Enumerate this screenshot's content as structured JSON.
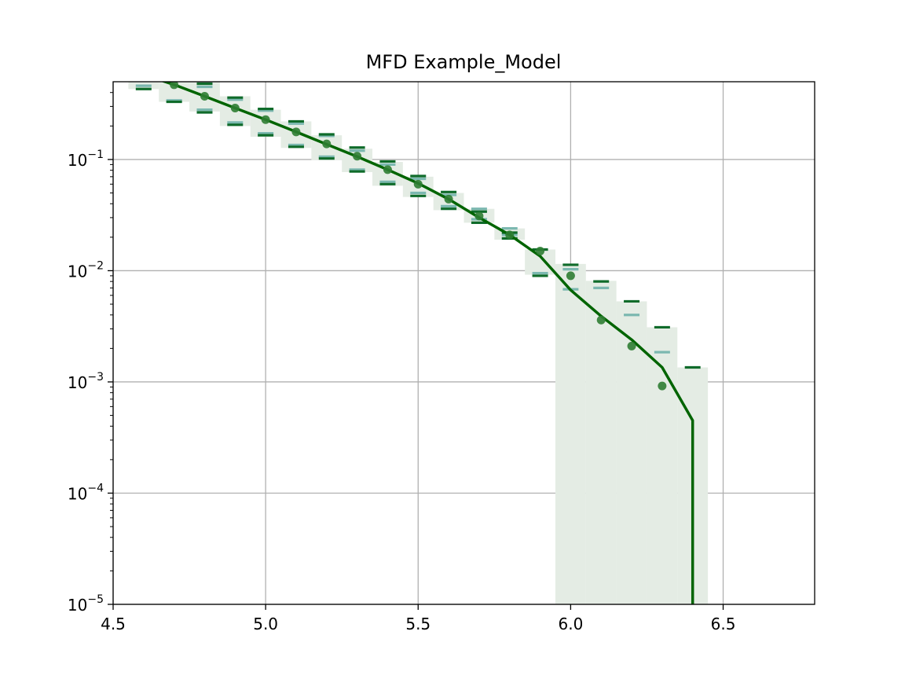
{
  "chart_data": {
    "type": "line",
    "title": "MFD Example_Model",
    "xlabel": "",
    "ylabel": "",
    "xlim": [
      4.5,
      6.8
    ],
    "ylim": [
      1e-05,
      0.5
    ],
    "yscale": "log",
    "grid": true,
    "x_ticks": [
      {
        "value": 4.5,
        "label": "4.5"
      },
      {
        "value": 5.0,
        "label": "5.0"
      },
      {
        "value": 5.5,
        "label": "5.5"
      },
      {
        "value": 6.0,
        "label": "6.0"
      },
      {
        "value": 6.5,
        "label": "6.5"
      }
    ],
    "y_ticks": [
      {
        "value": 0.1,
        "base": "10",
        "exp": "−1"
      },
      {
        "value": 0.01,
        "base": "10",
        "exp": "−2"
      },
      {
        "value": 0.001,
        "base": "10",
        "exp": "−3"
      },
      {
        "value": 0.0001,
        "base": "10",
        "exp": "−4"
      },
      {
        "value": 1e-05,
        "base": "10",
        "exp": "−5"
      }
    ],
    "colors": {
      "model_line": "#006400",
      "observed_points": "#2e7d32",
      "band_fill": "#e4ece4",
      "bound_dark": "#0f6b2a",
      "bound_light": "#7cb8b0",
      "grid": "#b0b0b0"
    },
    "model_line": {
      "x": [
        4.6,
        4.7,
        4.8,
        4.9,
        5.0,
        5.1,
        5.2,
        5.3,
        5.4,
        5.5,
        5.6,
        5.7,
        5.8,
        5.9,
        6.0,
        6.1,
        6.2,
        6.3,
        6.4,
        6.4
      ],
      "y": [
        0.58,
        0.47,
        0.37,
        0.29,
        0.228,
        0.177,
        0.137,
        0.106,
        0.081,
        0.061,
        0.044,
        0.03,
        0.021,
        0.0135,
        0.0067,
        0.0039,
        0.0024,
        0.00135,
        0.00045,
        1e-05
      ]
    },
    "observed_points": {
      "x": [
        4.7,
        4.8,
        4.9,
        5.0,
        5.1,
        5.2,
        5.3,
        5.4,
        5.5,
        5.6,
        5.7,
        5.8,
        5.9,
        6.0,
        6.1,
        6.2,
        6.3
      ],
      "y": [
        0.47,
        0.37,
        0.29,
        0.228,
        0.177,
        0.138,
        0.107,
        0.081,
        0.06,
        0.044,
        0.031,
        0.021,
        0.015,
        0.009,
        0.0036,
        0.0021,
        0.00092
      ]
    },
    "uncertainty_band": {
      "bin_width": 0.1,
      "x": [
        4.6,
        4.7,
        4.8,
        4.9,
        5.0,
        5.1,
        5.2,
        5.3,
        5.4,
        5.5,
        5.6,
        5.7,
        5.8,
        5.9,
        6.0,
        6.1,
        6.2,
        6.3,
        6.4
      ],
      "low": [
        0.43,
        0.33,
        0.27,
        0.2,
        0.16,
        0.127,
        0.099,
        0.077,
        0.058,
        0.046,
        0.035,
        0.027,
        0.019,
        0.0092,
        1e-05,
        1e-05,
        1e-05,
        1e-05,
        1e-05
      ],
      "high": [
        0.5,
        0.5,
        0.5,
        0.37,
        0.28,
        0.22,
        0.165,
        0.125,
        0.095,
        0.07,
        0.05,
        0.036,
        0.024,
        0.0155,
        0.0115,
        0.0081,
        0.0053,
        0.0031,
        0.00135
      ]
    },
    "upper_bound_dark": {
      "x": [
        4.8,
        4.9,
        5.0,
        5.1,
        5.2,
        5.3,
        5.4,
        5.5,
        5.6,
        5.7,
        5.8,
        5.9,
        6.0,
        6.1,
        6.2,
        6.3,
        6.4
      ],
      "y": [
        0.48,
        0.36,
        0.285,
        0.22,
        0.168,
        0.128,
        0.096,
        0.071,
        0.051,
        0.034,
        0.022,
        0.0155,
        0.0113,
        0.008,
        0.0053,
        0.0031,
        0.00135
      ]
    },
    "upper_bound_light": {
      "x": [
        4.6,
        4.8,
        4.9,
        5.0,
        5.1,
        5.2,
        5.3,
        5.4,
        5.5,
        5.6,
        5.7,
        5.8,
        6.0,
        6.1,
        6.2,
        6.3
      ],
      "y": [
        0.46,
        0.45,
        0.345,
        0.275,
        0.21,
        0.163,
        0.12,
        0.09,
        0.067,
        0.048,
        0.036,
        0.024,
        0.0103,
        0.007,
        0.004,
        0.00185
      ]
    },
    "lower_bound_dark": {
      "x": [
        4.6,
        4.7,
        4.8,
        4.9,
        5.0,
        5.1,
        5.2,
        5.3,
        5.4,
        5.5,
        5.6,
        5.7,
        5.8,
        5.9
      ],
      "y": [
        0.43,
        0.33,
        0.265,
        0.205,
        0.165,
        0.13,
        0.102,
        0.078,
        0.06,
        0.047,
        0.036,
        0.027,
        0.0195,
        0.009
      ]
    },
    "lower_bound_light": {
      "x": [
        4.7,
        4.8,
        4.9,
        5.0,
        5.1,
        5.2,
        5.3,
        5.4,
        5.5,
        5.6,
        5.7,
        5.8,
        5.9,
        6.0
      ],
      "y": [
        0.34,
        0.28,
        0.215,
        0.172,
        0.135,
        0.106,
        0.081,
        0.063,
        0.05,
        0.038,
        0.029,
        0.021,
        0.0095,
        0.0068
      ]
    }
  }
}
